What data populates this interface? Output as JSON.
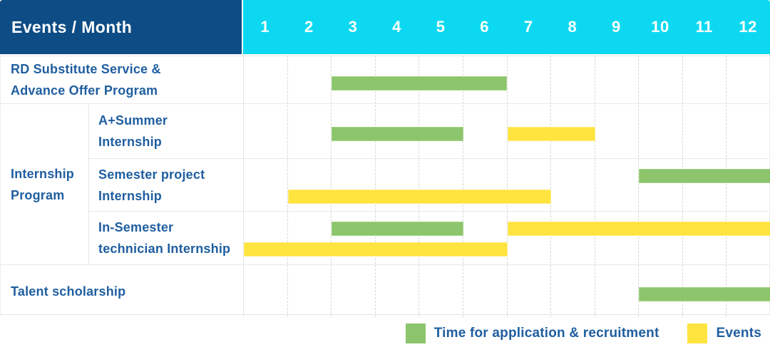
{
  "header": {
    "title": "Events / Month"
  },
  "colors": {
    "header_bg": "#0D4C84",
    "months_bg": "#0CD9F1",
    "application_green": "#8CC56C",
    "event_yellow": "#FFE33E",
    "label_text": "#1F5EA0"
  },
  "chart_data": {
    "type": "gantt",
    "title": "Events / Month",
    "months": [
      "1",
      "2",
      "3",
      "4",
      "5",
      "6",
      "7",
      "8",
      "9",
      "10",
      "11",
      "12"
    ],
    "legend": [
      {
        "kind": "application",
        "label": "Time for application & recruitment",
        "color": "#8CC56C"
      },
      {
        "kind": "event",
        "label": "Events",
        "color": "#FFE33E"
      }
    ],
    "rows": [
      {
        "group": "",
        "label_lines": [
          "RD Substitute Service &",
          "Advance Offer Program"
        ],
        "lines": [
          [
            {
              "kind": "application",
              "start": 3,
              "end": 6
            }
          ]
        ]
      },
      {
        "group": "Internship Program",
        "label_lines": [
          "A+Summer",
          "Internship"
        ],
        "lines": [
          [
            {
              "kind": "application",
              "start": 3,
              "end": 5
            },
            {
              "kind": "event",
              "start": 7,
              "end": 8
            }
          ]
        ]
      },
      {
        "group": "Internship Program",
        "label_lines": [
          "Semester project",
          "Internship"
        ],
        "lines": [
          [
            {
              "kind": "application",
              "start": 10,
              "end": 12
            }
          ],
          [
            {
              "kind": "event",
              "start": 2,
              "end": 7
            }
          ]
        ]
      },
      {
        "group": "Internship Program",
        "label_lines": [
          "In-Semester",
          "technician Internship"
        ],
        "lines": [
          [
            {
              "kind": "application",
              "start": 3,
              "end": 5
            },
            {
              "kind": "event",
              "start": 7,
              "end": 12
            }
          ],
          [
            {
              "kind": "event",
              "start": 1,
              "end": 6
            }
          ]
        ]
      },
      {
        "group": "",
        "label_lines": [
          "Talent scholarship"
        ],
        "lines": [
          [
            {
              "kind": "application",
              "start": 10,
              "end": 12
            }
          ]
        ]
      }
    ]
  }
}
